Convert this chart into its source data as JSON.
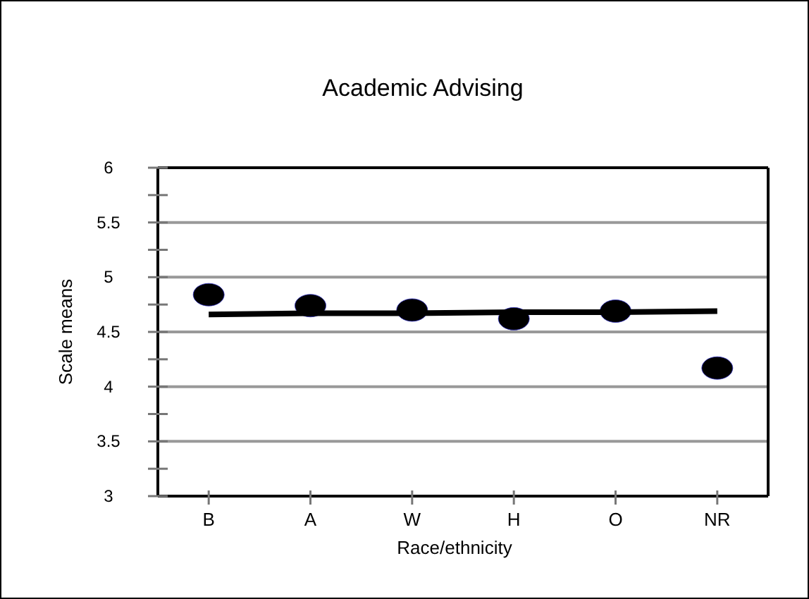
{
  "chart_data": {
    "type": "scatter",
    "title": "Academic Advising",
    "xlabel": "Race/ethnicity",
    "ylabel": "Scale means",
    "categories": [
      "B",
      "A",
      "W",
      "H",
      "O",
      "NR"
    ],
    "series": [
      {
        "color": "#000000",
        "values": [
          4.84,
          4.74,
          4.7,
          4.62,
          4.69,
          4.17
        ],
        "marker": "circle"
      },
      {
        "type": "line",
        "color": "#000000",
        "values": [
          4.66,
          4.67,
          4.67,
          4.68,
          4.68,
          4.69
        ],
        "line_style": "solid"
      }
    ],
    "ylim": [
      3,
      6
    ],
    "yticks": [
      3,
      {
        "value": 3.25,
        "label": null
      },
      3.5,
      {
        "value": 3.75,
        "label": null
      },
      4,
      {
        "value": 4.25,
        "label": null
      },
      4.5,
      {
        "value": 4.75,
        "label": null
      },
      5,
      {
        "value": 5.25,
        "label": null
      },
      5.5,
      {
        "value": 5.75,
        "label": null
      },
      6
    ],
    "grid": "y"
  }
}
